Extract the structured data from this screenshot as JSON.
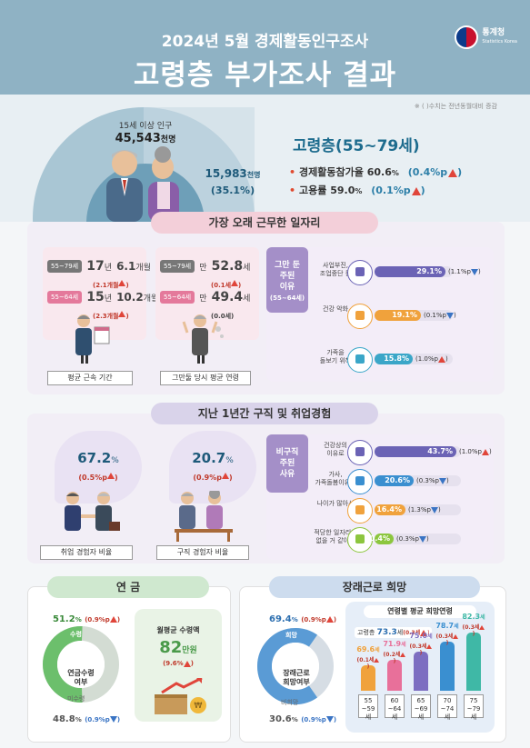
{
  "header": {
    "subtitle": "2024년 5월 경제활동인구조사",
    "title": "고령층 부가조사 결과",
    "logo_name": "통계청",
    "logo_sub": "Statistics Korea",
    "note": "※ ( )수치는 전년동월대비 증감"
  },
  "hero": {
    "pop_label": "15세 이상 인구",
    "pop_value": "45,543",
    "pop_unit": "천명",
    "elder_value": "15,983",
    "elder_unit": "천명",
    "elder_pct": "(35.1%)",
    "elder_title": "고령층(55~79세)",
    "participation_label": "경제활동참가율",
    "participation_value": "60.6",
    "participation_unit": "%",
    "participation_change": "(0.4%p",
    "employment_label": "고용률",
    "employment_value": "59.0",
    "employment_unit": "%",
    "employment_change": "(0.1%p"
  },
  "longest_job": {
    "heading": "가장 오래 근무한 일자리",
    "tenure": {
      "row1_tag": "55~79세",
      "row1_years": "17",
      "row1_years_unit": "년",
      "row1_months": "6.1",
      "row1_months_unit": "개월",
      "row1_change": "(2.1개월",
      "row2_tag": "55~64세",
      "row2_years": "15",
      "row2_years_unit": "년",
      "row2_months": "10.2",
      "row2_months_unit": "개월",
      "row2_change": "(2.3개월",
      "caption": "평균 근속 기간"
    },
    "quit_age": {
      "row1_tag": "55~79세",
      "row1_prefix": "만",
      "row1_value": "52.8",
      "row1_unit": "세",
      "row1_change": "(0.1세",
      "row2_tag": "55~64세",
      "row2_prefix": "만",
      "row2_value": "49.4",
      "row2_unit": "세",
      "row2_change": "(0.0세)",
      "caption": "그만둘 당시 평균 연령"
    },
    "reasons": {
      "label_line1": "그만 둔",
      "label_line2": "주된",
      "label_line3": "이유",
      "label_line4": "(55~64세)",
      "items": [
        {
          "label1": "사업부진,",
          "label2": "조업중단 등",
          "value": 29.1,
          "value_text": "29.1%",
          "change": "(1.1%p",
          "dir": "down",
          "color": "#6b63b5",
          "icon": "building-icon"
        },
        {
          "label1": "건강 악화",
          "label2": "",
          "value": 19.1,
          "value_text": "19.1%",
          "change": "(0.1%p",
          "dir": "down",
          "color": "#f0a23c",
          "icon": "hospital-icon"
        },
        {
          "label1": "가족을",
          "label2": "돌보기 위해",
          "value": 15.8,
          "value_text": "15.8%",
          "change": "(1.0%p",
          "dir": "up",
          "color": "#3aa6c8",
          "icon": "family-icon"
        }
      ]
    }
  },
  "job_search": {
    "heading": "지난 1년간 구직 및 취업경험",
    "employment_exp": {
      "value": "67.2",
      "unit": "%",
      "change": "(0.5%p",
      "caption": "취업 경험자 비율"
    },
    "search_exp": {
      "value": "20.7",
      "unit": "%",
      "change": "(0.9%p",
      "caption": "구직 경험자 비율"
    },
    "reasons": {
      "label_line1": "비구직",
      "label_line2": "주된",
      "label_line3": "사유",
      "items": [
        {
          "label1": "건강상의",
          "label2": "이유로",
          "value": 43.7,
          "value_text": "43.7%",
          "change": "(1.0%p",
          "dir": "up",
          "color": "#6b63b5"
        },
        {
          "label1": "가사,",
          "label2": "가족돌봄이유로",
          "value": 20.6,
          "value_text": "20.6%",
          "change": "(0.3%p",
          "dir": "down",
          "color": "#3a8fd0"
        },
        {
          "label1": "나이가 많아서",
          "label2": "",
          "value": 16.4,
          "value_text": "16.4%",
          "change": "(1.3%p",
          "dir": "down",
          "color": "#f0a23c"
        },
        {
          "label1": "적당한 일자리가",
          "label2": "없을 거 같아서",
          "value": 10.4,
          "value_text": "10.4%",
          "change": "(0.3%p",
          "dir": "down",
          "color": "#8cc63e"
        }
      ]
    }
  },
  "pension": {
    "heading": "연 금",
    "received_pct": "51.2",
    "received_unit": "%",
    "received_change": "(0.9%p",
    "received_label": "수령",
    "center_line1": "연금수령",
    "center_line2": "여부",
    "not_received_label": "미수령",
    "not_received_pct": "48.8",
    "not_received_unit": "%",
    "not_received_change": "(0.9%p",
    "monthly_label": "월평균 수령액",
    "monthly_value": "82",
    "monthly_unit": "만원",
    "monthly_change": "(9.6%",
    "received_share": 0.512
  },
  "future_work": {
    "heading": "장래근로 희망",
    "want_pct": "69.4",
    "want_unit": "%",
    "want_change": "(0.9%p",
    "want_label": "희망",
    "center_line1": "장래근로",
    "center_line2": "희망여부",
    "not_want_label": "비희망",
    "not_want_pct": "30.6",
    "not_want_unit": "%",
    "not_want_change": "(0.9%p",
    "want_share": 0.694,
    "age_chart": {
      "title": "연령별 평균 희망연령",
      "overall_label": "고령층",
      "overall_value": "73.3",
      "overall_unit": "세",
      "overall_change": "(0.3세",
      "groups": [
        {
          "age1": "55",
          "age2": "~59세",
          "value": 69.6,
          "value_text": "69.6",
          "change": "(0.1세",
          "color": "#f0a23c"
        },
        {
          "age1": "60",
          "age2": "~64세",
          "value": 71.9,
          "value_text": "71.9",
          "change": "(0.2세",
          "color": "#e8709a"
        },
        {
          "age1": "65",
          "age2": "~69세",
          "value": 75.0,
          "value_text": "75.0",
          "change": "(0.3세",
          "color": "#7d6ec1"
        },
        {
          "age1": "70",
          "age2": "~74세",
          "value": 78.7,
          "value_text": "78.7",
          "change": "(0.3세",
          "color": "#3a8fd0"
        },
        {
          "age1": "75",
          "age2": "~79세",
          "value": 82.3,
          "value_text": "82.3",
          "change": "(0.3세",
          "color": "#3fb8a6"
        }
      ]
    }
  }
}
